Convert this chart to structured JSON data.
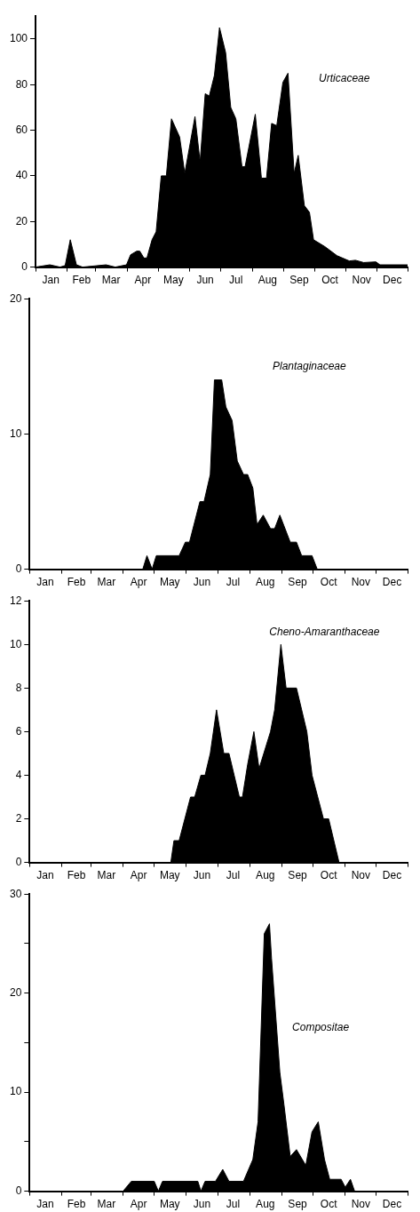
{
  "chart_data": [
    {
      "type": "area",
      "x": [
        "--01-01",
        "--01-15",
        "--01-25",
        "--01-30",
        "--02-04",
        "--02-10",
        "--02-16",
        "--03-11",
        "--03-20",
        "--03-31",
        "--04-04",
        "--04-10",
        "--04-13",
        "--04-17",
        "--04-20",
        "--04-25",
        "--04-29",
        "--05-04",
        "--05-09",
        "--05-14",
        "--05-22",
        "--05-27",
        "--06-06",
        "--06-11",
        "--06-16",
        "--06-20",
        "--06-25",
        "--06-30",
        "--07-06",
        "--07-11",
        "--07-16",
        "--07-22",
        "--07-25",
        "--08-04",
        "--08-10",
        "--08-15",
        "--08-20",
        "--08-25",
        "--08-31",
        "--09-05",
        "--09-11",
        "--09-15",
        "--09-21",
        "--09-26",
        "--09-30",
        "--10-11",
        "--10-23",
        "--11-04",
        "--11-10",
        "--11-18",
        "--11-30",
        "--12-04",
        "--12-31"
      ],
      "series": [
        {
          "name": "Urticaceae",
          "color": "#000000",
          "values": [
            0,
            1,
            0,
            0.7,
            12,
            1,
            0,
            1,
            0,
            1,
            5.4,
            7,
            7,
            4,
            4,
            12,
            15.5,
            40,
            40,
            65,
            57,
            41,
            66,
            46,
            76,
            75,
            84,
            105,
            94,
            70,
            65,
            44,
            44,
            67,
            39,
            39,
            63,
            62,
            81,
            85,
            41,
            49,
            27,
            24,
            12,
            9,
            5,
            2.7,
            3,
            2,
            2.3,
            1,
            1
          ]
        }
      ],
      "xlim": [
        "--01-01",
        "--12-31"
      ],
      "xticks": [
        {
          "value": "--01-01",
          "label": null
        },
        {
          "value": "--01-16",
          "label": "Jan"
        },
        {
          "value": "--02-01",
          "label": null
        },
        {
          "value": "--02-15",
          "label": "Feb"
        },
        {
          "value": "--03-01",
          "label": null
        },
        {
          "value": "--03-16",
          "label": "Mar"
        },
        {
          "value": "--04-01",
          "label": null
        },
        {
          "value": "--04-16",
          "label": "Apr"
        },
        {
          "value": "--05-01",
          "label": null
        },
        {
          "value": "--05-16",
          "label": "May"
        },
        {
          "value": "--06-01",
          "label": null
        },
        {
          "value": "--06-16",
          "label": "Jun"
        },
        {
          "value": "--07-01",
          "label": null
        },
        {
          "value": "--07-16",
          "label": "Jul"
        },
        {
          "value": "--08-01",
          "label": null
        },
        {
          "value": "--08-16",
          "label": "Aug"
        },
        {
          "value": "--09-01",
          "label": null
        },
        {
          "value": "--09-16",
          "label": "Sep"
        },
        {
          "value": "--10-01",
          "label": null
        },
        {
          "value": "--10-16",
          "label": "Oct"
        },
        {
          "value": "--11-01",
          "label": null
        },
        {
          "value": "--11-16",
          "label": "Nov"
        },
        {
          "value": "--12-01",
          "label": null
        },
        {
          "value": "--12-16",
          "label": "Dec"
        },
        {
          "value": "--12-31",
          "label": null
        }
      ],
      "ylim": [
        0,
        110
      ],
      "yticks": [
        0,
        20,
        40,
        60,
        80,
        100
      ]
    },
    {
      "type": "area",
      "x": [
        "--01-01",
        "--04-20",
        "--04-24",
        "--04-29",
        "--05-03",
        "--05-25",
        "--05-31",
        "--06-04",
        "--06-14",
        "--06-18",
        "--06-24",
        "--06-28",
        "--07-05",
        "--07-09",
        "--07-15",
        "--07-20",
        "--07-26",
        "--07-30",
        "--08-04",
        "--08-08",
        "--08-14",
        "--08-21",
        "--08-25",
        "--08-30",
        "--09-09",
        "--09-15",
        "--09-20",
        "--09-30",
        "--10-05",
        "--12-31"
      ],
      "series": [
        {
          "name": "Plantaginaceae",
          "color": "#000000",
          "values": [
            0,
            0,
            1,
            0,
            1,
            1,
            2,
            2,
            5,
            5,
            7,
            14,
            14,
            12,
            11,
            8,
            7,
            7,
            6,
            3.3,
            4,
            3,
            3,
            4,
            2,
            2,
            1,
            1,
            0,
            0
          ]
        }
      ],
      "xlim": [
        "--01-01",
        "--12-31"
      ],
      "xticks": [
        {
          "value": "--01-01",
          "label": null
        },
        {
          "value": "--01-16",
          "label": "Jan"
        },
        {
          "value": "--02-01",
          "label": null
        },
        {
          "value": "--02-15",
          "label": "Feb"
        },
        {
          "value": "--03-01",
          "label": null
        },
        {
          "value": "--03-16",
          "label": "Mar"
        },
        {
          "value": "--04-01",
          "label": null
        },
        {
          "value": "--04-16",
          "label": "Apr"
        },
        {
          "value": "--05-01",
          "label": null
        },
        {
          "value": "--05-16",
          "label": "May"
        },
        {
          "value": "--06-01",
          "label": null
        },
        {
          "value": "--06-16",
          "label": "Jun"
        },
        {
          "value": "--07-01",
          "label": null
        },
        {
          "value": "--07-16",
          "label": "Jul"
        },
        {
          "value": "--08-01",
          "label": null
        },
        {
          "value": "--08-16",
          "label": "Aug"
        },
        {
          "value": "--09-01",
          "label": null
        },
        {
          "value": "--09-16",
          "label": "Sep"
        },
        {
          "value": "--10-01",
          "label": null
        },
        {
          "value": "--10-16",
          "label": "Oct"
        },
        {
          "value": "--11-01",
          "label": null
        },
        {
          "value": "--11-16",
          "label": "Nov"
        },
        {
          "value": "--12-01",
          "label": null
        },
        {
          "value": "--12-16",
          "label": "Dec"
        },
        {
          "value": "--12-31",
          "label": null
        }
      ],
      "ylim": [
        0,
        20
      ],
      "yticks": [
        0,
        10,
        20
      ]
    },
    {
      "type": "area",
      "x": [
        "--01-01",
        "--05-17",
        "--05-20",
        "--05-25",
        "--06-05",
        "--06-09",
        "--06-15",
        "--06-19",
        "--06-24",
        "--06-30",
        "--07-07",
        "--07-12",
        "--07-17",
        "--07-22",
        "--07-25",
        "--07-30",
        "--08-05",
        "--08-10",
        "--08-21",
        "--08-25",
        "--08-31",
        "--09-05",
        "--09-15",
        "--09-20",
        "--09-25",
        "--09-30",
        "--10-11",
        "--10-16",
        "--10-26",
        "--12-31"
      ],
      "series": [
        {
          "name": "Cheno-Amaranthaceae",
          "color": "#000000",
          "values": [
            0,
            0,
            1,
            1,
            3,
            3,
            4,
            4,
            5,
            7,
            5,
            5,
            4,
            3,
            3,
            4.5,
            6,
            4.3,
            6,
            7,
            10,
            8,
            8,
            7,
            6,
            4,
            2,
            2,
            0,
            0
          ]
        }
      ],
      "xlim": [
        "--01-01",
        "--12-31"
      ],
      "xticks": [
        {
          "value": "--01-01",
          "label": null
        },
        {
          "value": "--01-16",
          "label": "Jan"
        },
        {
          "value": "--02-01",
          "label": null
        },
        {
          "value": "--02-15",
          "label": "Feb"
        },
        {
          "value": "--03-01",
          "label": null
        },
        {
          "value": "--03-16",
          "label": "Mar"
        },
        {
          "value": "--04-01",
          "label": null
        },
        {
          "value": "--04-16",
          "label": "Apr"
        },
        {
          "value": "--05-01",
          "label": null
        },
        {
          "value": "--05-16",
          "label": "May"
        },
        {
          "value": "--06-01",
          "label": null
        },
        {
          "value": "--06-16",
          "label": "Jun"
        },
        {
          "value": "--07-01",
          "label": null
        },
        {
          "value": "--07-16",
          "label": "Jul"
        },
        {
          "value": "--08-01",
          "label": null
        },
        {
          "value": "--08-16",
          "label": "Aug"
        },
        {
          "value": "--09-01",
          "label": null
        },
        {
          "value": "--09-16",
          "label": "Sep"
        },
        {
          "value": "--10-01",
          "label": null
        },
        {
          "value": "--10-16",
          "label": "Oct"
        },
        {
          "value": "--11-01",
          "label": null
        },
        {
          "value": "--11-16",
          "label": "Nov"
        },
        {
          "value": "--12-01",
          "label": null
        },
        {
          "value": "--12-16",
          "label": "Dec"
        },
        {
          "value": "--12-31",
          "label": null
        }
      ],
      "ylim": [
        0,
        12
      ],
      "yticks": [
        0,
        2,
        4,
        6,
        8,
        10,
        12
      ]
    },
    {
      "type": "area",
      "x": [
        "--01-01",
        "--04-01",
        "--04-09",
        "--05-01",
        "--05-05",
        "--05-09",
        "--06-12",
        "--06-15",
        "--06-19",
        "--06-29",
        "--07-06",
        "--07-12",
        "--07-26",
        "--08-04",
        "--08-09",
        "--08-15",
        "--08-20",
        "--08-22",
        "--08-30",
        "--09-03",
        "--09-09",
        "--09-15",
        "--09-24",
        "--09-30",
        "--10-06",
        "--10-12",
        "--10-17",
        "--10-28",
        "--11-01",
        "--11-06",
        "--11-10",
        "--12-31"
      ],
      "series": [
        {
          "name": "Compositae",
          "color": "#000000",
          "values": [
            0,
            0,
            1,
            1,
            0,
            1,
            1,
            0,
            1,
            1,
            2.2,
            1,
            1,
            3.2,
            7,
            26,
            27,
            23.5,
            12,
            8.7,
            3.5,
            4.2,
            2.6,
            6,
            7,
            3.2,
            1.2,
            1.2,
            0.4,
            1.2,
            0,
            0
          ]
        }
      ],
      "xlim": [
        "--01-01",
        "--12-31"
      ],
      "xticks": [
        {
          "value": "--01-01",
          "label": null
        },
        {
          "value": "--01-16",
          "label": "Jan"
        },
        {
          "value": "--02-01",
          "label": null
        },
        {
          "value": "--02-15",
          "label": "Feb"
        },
        {
          "value": "--03-01",
          "label": null
        },
        {
          "value": "--03-16",
          "label": "Mar"
        },
        {
          "value": "--04-01",
          "label": null
        },
        {
          "value": "--04-16",
          "label": "Apr"
        },
        {
          "value": "--05-01",
          "label": null
        },
        {
          "value": "--05-16",
          "label": "May"
        },
        {
          "value": "--06-01",
          "label": null
        },
        {
          "value": "--06-16",
          "label": "Jun"
        },
        {
          "value": "--07-01",
          "label": null
        },
        {
          "value": "--07-16",
          "label": "Jul"
        },
        {
          "value": "--08-01",
          "label": null
        },
        {
          "value": "--08-16",
          "label": "Aug"
        },
        {
          "value": "--09-01",
          "label": null
        },
        {
          "value": "--09-16",
          "label": "Sep"
        },
        {
          "value": "--10-01",
          "label": null
        },
        {
          "value": "--10-16",
          "label": "Oct"
        },
        {
          "value": "--11-01",
          "label": null
        },
        {
          "value": "--11-16",
          "label": "Nov"
        },
        {
          "value": "--12-01",
          "label": null
        },
        {
          "value": "--12-16",
          "label": "Dec"
        },
        {
          "value": "--12-31",
          "label": null
        }
      ],
      "ylim": [
        0,
        30
      ],
      "yticks": [
        0,
        {
          "value": 5,
          "label": null
        },
        10,
        {
          "value": 15,
          "label": null
        },
        20,
        {
          "value": 25,
          "label": null
        },
        30
      ]
    }
  ]
}
